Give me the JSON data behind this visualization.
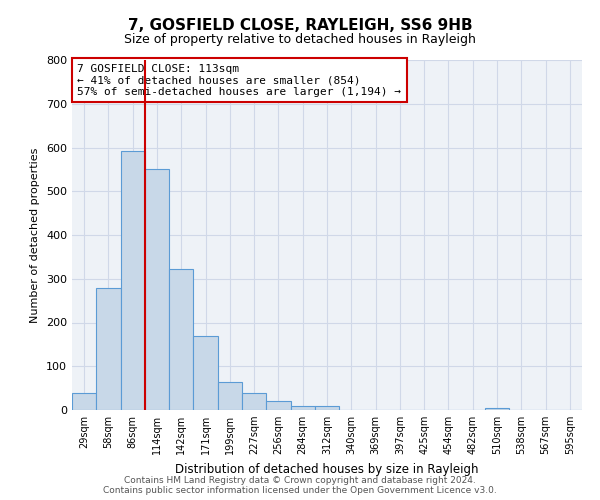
{
  "title": "7, GOSFIELD CLOSE, RAYLEIGH, SS6 9HB",
  "subtitle": "Size of property relative to detached houses in Rayleigh",
  "xlabel": "Distribution of detached houses by size in Rayleigh",
  "ylabel": "Number of detached properties",
  "bin_labels": [
    "29sqm",
    "58sqm",
    "86sqm",
    "114sqm",
    "142sqm",
    "171sqm",
    "199sqm",
    "227sqm",
    "256sqm",
    "284sqm",
    "312sqm",
    "340sqm",
    "369sqm",
    "397sqm",
    "425sqm",
    "454sqm",
    "482sqm",
    "510sqm",
    "538sqm",
    "567sqm",
    "595sqm"
  ],
  "bar_values": [
    38,
    278,
    592,
    550,
    322,
    170,
    65,
    38,
    20,
    10,
    10,
    0,
    0,
    0,
    0,
    0,
    0,
    5,
    0,
    0,
    0
  ],
  "bar_color": "#c8d8e8",
  "bar_edge_color": "#5b9bd5",
  "vline_x_index": 3,
  "vline_color": "#cc0000",
  "ylim": [
    0,
    800
  ],
  "yticks": [
    0,
    100,
    200,
    300,
    400,
    500,
    600,
    700,
    800
  ],
  "annotation_line1": "7 GOSFIELD CLOSE: 113sqm",
  "annotation_line2": "← 41% of detached houses are smaller (854)",
  "annotation_line3": "57% of semi-detached houses are larger (1,194) →",
  "annotation_box_color": "#cc0000",
  "annotation_box_facecolor": "white",
  "footer_line1": "Contains HM Land Registry data © Crown copyright and database right 2024.",
  "footer_line2": "Contains public sector information licensed under the Open Government Licence v3.0.",
  "grid_color": "#d0d8e8",
  "background_color": "#eef2f7"
}
